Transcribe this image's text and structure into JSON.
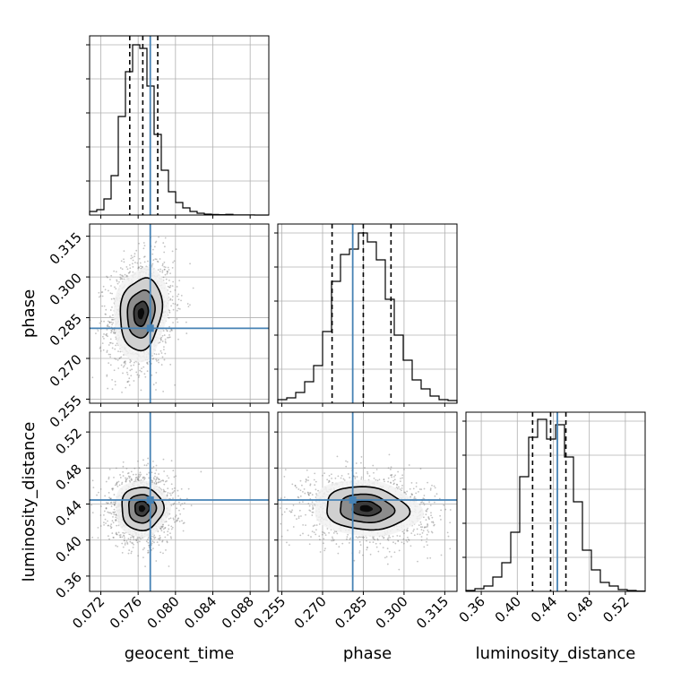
{
  "chart_data": {
    "type": "corner",
    "params": [
      "geocent_time",
      "phase",
      "luminosity_distance"
    ],
    "axis_labels": {
      "geocent_time": "geocent_time",
      "phase": "phase",
      "luminosity_distance": "luminosity_distance"
    },
    "grid": true,
    "ranges": {
      "geocent_time": [
        0.0708,
        0.09
      ],
      "phase": [
        0.2535,
        0.3195
      ],
      "luminosity_distance": [
        0.343,
        0.542
      ]
    },
    "ticks": {
      "geocent_time": [
        0.072,
        0.076,
        0.08,
        0.084,
        0.088
      ],
      "phase": [
        0.255,
        0.27,
        0.285,
        0.3,
        0.315
      ],
      "luminosity_distance": [
        0.36,
        0.4,
        0.44,
        0.48,
        0.52
      ]
    },
    "tick_labels": {
      "geocent_time": [
        "0.072",
        "0.076",
        "0.080",
        "0.084",
        "0.088"
      ],
      "phase": [
        "0.255",
        "0.270",
        "0.285",
        "0.300",
        "0.315"
      ],
      "luminosity_distance": [
        "0.36",
        "0.40",
        "0.44",
        "0.48",
        "0.52"
      ]
    },
    "truths": {
      "geocent_time": 0.0773,
      "phase": 0.2811,
      "luminosity_distance": 0.4445
    },
    "quantiles": {
      "geocent_time": [
        0.0751,
        0.0765,
        0.0781
      ],
      "phase": [
        0.2735,
        0.285,
        0.2952
      ],
      "luminosity_distance": [
        0.417,
        0.437,
        0.454
      ]
    },
    "histograms": {
      "geocent_time": [
        0.02,
        0.03,
        0.09,
        0.22,
        0.55,
        0.8,
        0.95,
        0.93,
        0.72,
        0.45,
        0.25,
        0.13,
        0.07,
        0.04,
        0.02,
        0.01,
        0.005,
        0.003,
        0.002,
        0.004,
        0.001,
        0.001,
        0.001,
        0.0,
        0.0
      ],
      "phase": [
        0.02,
        0.03,
        0.06,
        0.12,
        0.21,
        0.4,
        0.68,
        0.83,
        0.86,
        0.95,
        0.9,
        0.8,
        0.58,
        0.38,
        0.24,
        0.13,
        0.08,
        0.04,
        0.02,
        0.015
      ],
      "luminosity_distance": [
        0.005,
        0.015,
        0.03,
        0.08,
        0.16,
        0.33,
        0.64,
        0.86,
        0.96,
        0.85,
        0.93,
        0.75,
        0.5,
        0.23,
        0.12,
        0.05,
        0.03,
        0.01,
        0.005,
        0.002
      ]
    },
    "contours_2d": [
      {
        "x": "geocent_time",
        "y": "phase",
        "center": [
          0.0763,
          0.2865
        ],
        "sigma": [
          0.0014,
          0.0083
        ],
        "rho": 0.15
      },
      {
        "x": "geocent_time",
        "y": "luminosity_distance",
        "center": [
          0.0764,
          0.435
        ],
        "sigma": [
          0.0014,
          0.015
        ],
        "rho": 0.0
      },
      {
        "x": "phase",
        "y": "luminosity_distance",
        "center": [
          0.286,
          0.435
        ],
        "sigma": [
          0.0095,
          0.015
        ],
        "rho": -0.12
      }
    ]
  }
}
